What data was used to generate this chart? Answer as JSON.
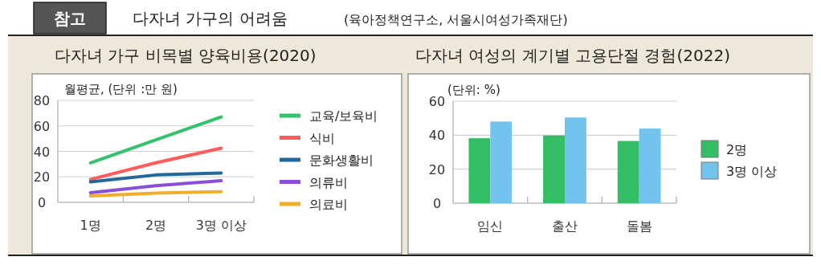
{
  "chart_data": [
    {
      "type": "line",
      "title": "다자녀 가구 비목별 양육비용(2020)",
      "ylabel": "월평균, (단위 :만 원)",
      "annotations": [
        "참고",
        "다자녀 가구의 어려움",
        "(육아정책연구소, 서울시여성가족재단)"
      ],
      "categories": [
        "1명",
        "2명",
        "3명 이상"
      ],
      "ylim": [
        0,
        80
      ],
      "yticks": [
        0,
        20,
        40,
        60,
        80
      ],
      "grid": "y",
      "legend": "right",
      "series": [
        {
          "name": "교육/보육비",
          "color": "#33c36a",
          "values": [
            31,
            49,
            67
          ]
        },
        {
          "name": "식비",
          "color": "#ff5b5b",
          "values": [
            18,
            31,
            42.5
          ]
        },
        {
          "name": "문화생활비",
          "color": "#23689b",
          "values": [
            16,
            21.5,
            23
          ]
        },
        {
          "name": "의류비",
          "color": "#8a4fd9",
          "values": [
            7.5,
            13,
            17
          ]
        },
        {
          "name": "의료비",
          "color": "#f0ae2a",
          "values": [
            5,
            7.3,
            8.4
          ]
        }
      ]
    },
    {
      "type": "bar",
      "title": "다자녀 여성의 계기별 고용단절 경험(2022)",
      "ylabel": "(단위: %)",
      "categories": [
        "임신",
        "출산",
        "돌봄"
      ],
      "ylim": [
        0,
        60
      ],
      "yticks": [
        0,
        20,
        40,
        60
      ],
      "grid": "y",
      "legend": "right",
      "series": [
        {
          "name": "2명",
          "color": "#33bd65",
          "values": [
            38.2,
            39.8,
            36.6
          ]
        },
        {
          "name": "3명 이상",
          "color": "#72c4ee",
          "values": [
            48,
            50.4,
            43.9
          ]
        }
      ]
    }
  ]
}
